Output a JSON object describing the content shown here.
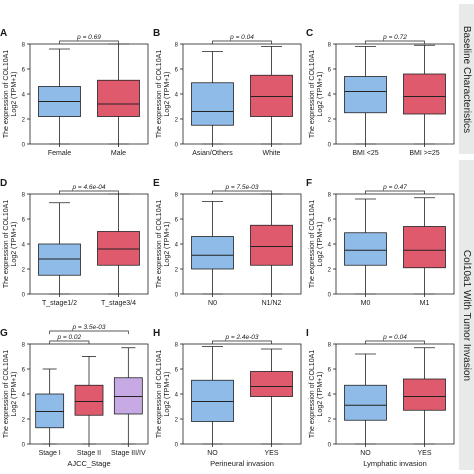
{
  "colors": {
    "low": "#8ebbe8",
    "high": "#e05a6d",
    "mid": "#c7a9e4",
    "strip": "#e9e9e9"
  },
  "strips": [
    "Baseline Characteristics",
    "Col10a1 With Tumor Invasion"
  ],
  "chart_data": [
    {
      "panel": "A",
      "type": "box",
      "ylabel": "The expression of COL10A1",
      "ylabel2": "Log2 (TPM+1)",
      "categories": [
        "Female",
        "Male"
      ],
      "ylim": [
        0,
        8
      ],
      "boxes": [
        {
          "whislo": 0.0,
          "q1": 2.2,
          "med": 3.4,
          "q3": 4.6,
          "whishi": 7.6
        },
        {
          "whislo": 0.0,
          "q1": 2.2,
          "med": 3.2,
          "q3": 5.1,
          "whishi": 8.0
        }
      ],
      "annotations": [
        {
          "label": "p = 0.69",
          "pair": [
            0,
            1
          ]
        }
      ],
      "xlabel": ""
    },
    {
      "panel": "B",
      "type": "box",
      "ylabel": "The expression of COL10A1",
      "ylabel2": "Log2 (TPM+1)",
      "categories": [
        "Asian/Others",
        "White"
      ],
      "ylim": [
        0,
        8
      ],
      "boxes": [
        {
          "whislo": 0.0,
          "q1": 1.5,
          "med": 2.6,
          "q3": 4.9,
          "whishi": 7.4
        },
        {
          "whislo": 0.0,
          "q1": 2.2,
          "med": 3.8,
          "q3": 5.5,
          "whishi": 7.8
        }
      ],
      "annotations": [
        {
          "label": "p = 0.04",
          "pair": [
            0,
            1
          ]
        }
      ],
      "xlabel": ""
    },
    {
      "panel": "C",
      "type": "box",
      "ylabel": "The expression of COL10A1",
      "ylabel2": "Log2 (TPM+1)",
      "categories": [
        "BMI <25",
        "BMI >=25"
      ],
      "ylim": [
        0,
        8
      ],
      "boxes": [
        {
          "whislo": 0.0,
          "q1": 2.5,
          "med": 4.2,
          "q3": 5.4,
          "whishi": 7.8
        },
        {
          "whislo": 0.0,
          "q1": 2.4,
          "med": 3.8,
          "q3": 5.6,
          "whishi": 7.9
        }
      ],
      "annotations": [
        {
          "label": "p = 0.72",
          "pair": [
            0,
            1
          ]
        }
      ],
      "xlabel": ""
    },
    {
      "panel": "D",
      "type": "box",
      "ylabel": "The expression of COL10A1",
      "ylabel2": "Log2 (TPM+1)",
      "categories": [
        "T_stage1/2",
        "T_stage3/4"
      ],
      "ylim": [
        0,
        8
      ],
      "boxes": [
        {
          "whislo": 0.0,
          "q1": 1.5,
          "med": 2.8,
          "q3": 4.0,
          "whishi": 7.3
        },
        {
          "whislo": 0.0,
          "q1": 2.3,
          "med": 3.6,
          "q3": 5.0,
          "whishi": 8.0
        }
      ],
      "annotations": [
        {
          "label": "p = 4.6e-04",
          "pair": [
            0,
            1
          ]
        }
      ],
      "xlabel": ""
    },
    {
      "panel": "E",
      "type": "box",
      "ylabel": "The expression of COL10A1",
      "ylabel2": "Log2 (TPM+1)",
      "categories": [
        "N0",
        "N1/N2"
      ],
      "ylim": [
        0,
        8
      ],
      "boxes": [
        {
          "whislo": 0.0,
          "q1": 2.0,
          "med": 3.1,
          "q3": 4.6,
          "whishi": 7.4
        },
        {
          "whislo": 0.0,
          "q1": 2.3,
          "med": 3.8,
          "q3": 5.5,
          "whishi": 8.0
        }
      ],
      "annotations": [
        {
          "label": "p = 7.5e-03",
          "pair": [
            0,
            1
          ]
        }
      ],
      "xlabel": ""
    },
    {
      "panel": "F",
      "type": "box",
      "ylabel": "The expression of COL10A1",
      "ylabel2": "Log2 (TPM+1)",
      "categories": [
        "M0",
        "M1"
      ],
      "ylim": [
        0,
        8
      ],
      "boxes": [
        {
          "whislo": 0.0,
          "q1": 2.3,
          "med": 3.5,
          "q3": 4.9,
          "whishi": 7.6
        },
        {
          "whislo": 0.0,
          "q1": 2.1,
          "med": 3.5,
          "q3": 5.4,
          "whishi": 7.7
        }
      ],
      "annotations": [
        {
          "label": "p = 0.47",
          "pair": [
            0,
            1
          ]
        }
      ],
      "xlabel": ""
    },
    {
      "panel": "G",
      "type": "box",
      "ylabel": "The expression of COL10A1",
      "ylabel2": "Log2 (TPM+1)",
      "categories": [
        "Stage I",
        "Stage II",
        "Stage III/IV"
      ],
      "ylim": [
        0,
        8
      ],
      "boxes": [
        {
          "whislo": 0.0,
          "q1": 1.3,
          "med": 2.6,
          "q3": 4.0,
          "whishi": 6.0
        },
        {
          "whislo": 0.0,
          "q1": 2.3,
          "med": 3.4,
          "q3": 4.7,
          "whishi": 7.0
        },
        {
          "whislo": 0.0,
          "q1": 2.4,
          "med": 3.8,
          "q3": 5.3,
          "whishi": 7.7
        }
      ],
      "annotations": [
        {
          "label": "p = 0.02",
          "pair": [
            0,
            1
          ]
        },
        {
          "label": "p = 3.5e-03",
          "pair": [
            0,
            2
          ]
        }
      ],
      "xlabel": "AJCC_Stage"
    },
    {
      "panel": "H",
      "type": "box",
      "ylabel": "The expression of COL10A1",
      "ylabel2": "Log2 (TPM+1)",
      "categories": [
        "NO",
        "YES"
      ],
      "ylim": [
        0,
        8
      ],
      "boxes": [
        {
          "whislo": 0.0,
          "q1": 1.8,
          "med": 3.4,
          "q3": 5.1,
          "whishi": 7.8
        },
        {
          "whislo": 0.0,
          "q1": 3.8,
          "med": 4.6,
          "q3": 5.8,
          "whishi": 7.6
        }
      ],
      "annotations": [
        {
          "label": "p = 2.4e-03",
          "pair": [
            0,
            1
          ]
        }
      ],
      "xlabel": "Perineural invasion"
    },
    {
      "panel": "I",
      "type": "box",
      "ylabel": "The expression of COL10A1",
      "ylabel2": "Log2 (TPM+1)",
      "categories": [
        "NO",
        "YES"
      ],
      "ylim": [
        0,
        8
      ],
      "boxes": [
        {
          "whislo": 0.0,
          "q1": 1.9,
          "med": 3.1,
          "q3": 4.7,
          "whishi": 7.2
        },
        {
          "whislo": 0.0,
          "q1": 2.7,
          "med": 3.8,
          "q3": 5.2,
          "whishi": 7.7
        }
      ],
      "annotations": [
        {
          "label": "p = 0.04",
          "pair": [
            0,
            1
          ]
        }
      ],
      "xlabel": "Lymphatic invasion"
    }
  ]
}
